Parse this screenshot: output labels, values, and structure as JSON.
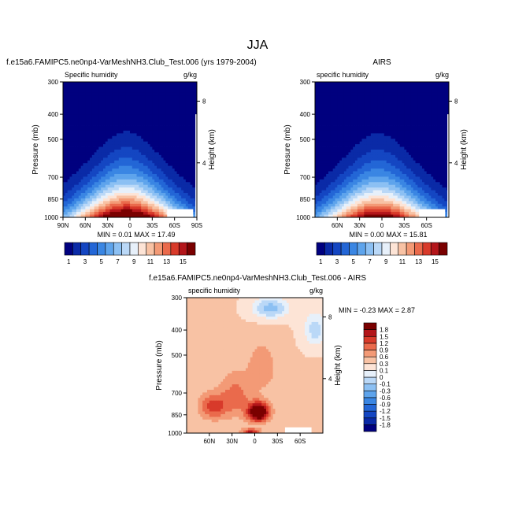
{
  "figure": {
    "title": "JJA"
  },
  "chart_data": [
    {
      "type": "heatmap",
      "case_title": "f.e15a6.FAMIPC5.ne0np4-VarMeshNH3.Club_Test.006 (yrs 1979-2004)",
      "left_label": "Specific humidity",
      "right_label": "g/kg",
      "xlabel": "",
      "ylabel": "Pressure (mb)",
      "y2label": "Height (km)",
      "x_ticks": [
        "90N",
        "60N",
        "30N",
        "0",
        "30S",
        "60S",
        "90S"
      ],
      "y_ticks": [
        300,
        400,
        500,
        700,
        850,
        1000
      ],
      "y2_ticks": [
        8,
        4
      ],
      "min_label": "MIN =",
      "min_value": "0.01",
      "max_label": "MAX =",
      "max_value": "17.49",
      "colorbar_labels": [
        "1",
        "3",
        "5",
        "7",
        "9",
        "11",
        "13",
        "15"
      ],
      "levels": [
        1,
        2,
        3,
        4,
        5,
        6,
        7,
        8,
        9,
        10,
        11,
        12,
        13,
        14,
        15
      ],
      "colors": [
        "#00007f",
        "#0a2aa7",
        "#1446c2",
        "#2366d6",
        "#3a86e3",
        "#5ea4ec",
        "#8cc0f3",
        "#bad8f7",
        "#e7f0fa",
        "#fde4d6",
        "#f8c2a4",
        "#f39a76",
        "#ea6a4c",
        "#d83a2a",
        "#b3151a",
        "#7a0000"
      ],
      "ylim": [
        1000,
        300
      ],
      "xlim": [
        90,
        -90
      ],
      "peak_value": 17.49
    },
    {
      "type": "heatmap",
      "case_title": "AIRS",
      "left_label": "specific humidity",
      "right_label": "g/kg",
      "xlabel": "",
      "ylabel": "Pressure (mb)",
      "y2label": "Height (km)",
      "x_ticks": [
        "60N",
        "30N",
        "0",
        "30S",
        "60S"
      ],
      "y_ticks": [
        300,
        400,
        500,
        700,
        850,
        1000
      ],
      "y2_ticks": [
        8,
        4
      ],
      "min_label": "MIN =",
      "min_value": "0.00",
      "max_label": "MAX =",
      "max_value": "15.81",
      "colorbar_labels": [
        "1",
        "3",
        "5",
        "7",
        "9",
        "11",
        "13",
        "15"
      ],
      "levels": [
        1,
        2,
        3,
        4,
        5,
        6,
        7,
        8,
        9,
        10,
        11,
        12,
        13,
        14,
        15
      ],
      "colors": [
        "#00007f",
        "#0a2aa7",
        "#1446c2",
        "#2366d6",
        "#3a86e3",
        "#5ea4ec",
        "#8cc0f3",
        "#bad8f7",
        "#e7f0fa",
        "#fde4d6",
        "#f8c2a4",
        "#f39a76",
        "#ea6a4c",
        "#d83a2a",
        "#b3151a",
        "#7a0000"
      ],
      "ylim": [
        1000,
        300
      ],
      "xlim": [
        90,
        -90
      ],
      "peak_value": 15.81
    },
    {
      "type": "heatmap",
      "case_title": "f.e15a6.FAMIPC5.ne0np4-VarMeshNH3.Club_Test.006 - AIRS",
      "left_label": "specific humidity",
      "right_label": "g/kg",
      "xlabel": "",
      "ylabel": "Pressure (mb)",
      "y2label": "Height (km)",
      "x_ticks": [
        "60N",
        "30N",
        "0",
        "30S",
        "60S"
      ],
      "y_ticks": [
        300,
        400,
        500,
        700,
        850,
        1000
      ],
      "y2_ticks": [
        8,
        4
      ],
      "min_label": "MIN =",
      "min_value": "-0.23",
      "max_label": "MAX =",
      "max_value": "2.87",
      "colorbar_labels": [
        "1.8",
        "1.5",
        "1.2",
        "0.9",
        "0.6",
        "0.3",
        "0.1",
        "0",
        "-0.1",
        "-0.3",
        "-0.6",
        "-0.9",
        "-1.2",
        "-1.5",
        "-1.8"
      ],
      "levels": [
        -1.8,
        -1.5,
        -1.2,
        -0.9,
        -0.6,
        -0.3,
        -0.1,
        0,
        0.1,
        0.3,
        0.6,
        0.9,
        1.2,
        1.5,
        1.8
      ],
      "colors": [
        "#00007f",
        "#0a2aa7",
        "#1446c2",
        "#2366d6",
        "#3a86e3",
        "#5ea4ec",
        "#8cc0f3",
        "#bad8f7",
        "#e7f0fa",
        "#fde4d6",
        "#f8c2a4",
        "#f39a76",
        "#ea6a4c",
        "#d83a2a",
        "#b3151a",
        "#7a0000"
      ],
      "ylim": [
        1000,
        300
      ],
      "xlim": [
        90,
        -90
      ]
    }
  ]
}
